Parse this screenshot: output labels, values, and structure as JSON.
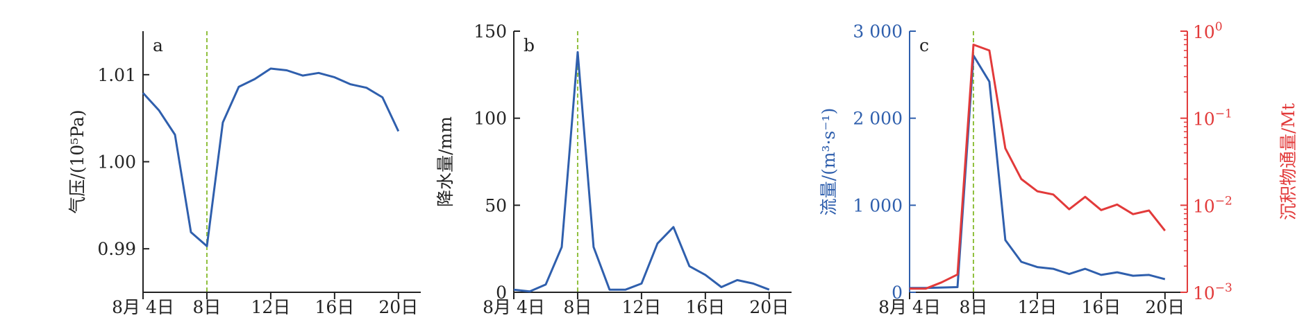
{
  "chart_data": [
    {
      "type": "line",
      "panel_label": "a",
      "ylabel": "气压/(10⁵Pa)",
      "ylim": [
        0.985,
        1.015
      ],
      "yticks": [
        0.99,
        1.0,
        1.01
      ],
      "ytick_labels": [
        "0.99",
        "1.00",
        "1.01"
      ],
      "xlim": [
        4,
        21.4
      ],
      "xticks": [
        4,
        8,
        12,
        16,
        20
      ],
      "xtick_labels": [
        "8月 4日",
        "8日",
        "12日",
        "16日",
        "20日"
      ],
      "marker_x": 8,
      "series": [
        {
          "color": "#2f5fad",
          "x": [
            4,
            5,
            6,
            7,
            8,
            9,
            10,
            11,
            12,
            13,
            14,
            15,
            16,
            17,
            18,
            19,
            20
          ],
          "y": [
            1.0079,
            1.0059,
            1.0031,
            0.9919,
            0.9903,
            1.0045,
            1.0086,
            1.0095,
            1.0107,
            1.0105,
            1.0099,
            1.0102,
            1.0097,
            1.0089,
            1.0085,
            1.0074,
            1.0035
          ]
        }
      ]
    },
    {
      "type": "line",
      "panel_label": "b",
      "ylabel": "降水量/mm",
      "ylim": [
        0,
        150
      ],
      "yticks": [
        0,
        50,
        100,
        150
      ],
      "ytick_labels": [
        "0",
        "50",
        "100",
        "150"
      ],
      "xlim": [
        4,
        21.4
      ],
      "xticks": [
        4,
        8,
        12,
        16,
        20
      ],
      "xtick_labels": [
        "8月 4日",
        "8日",
        "12日",
        "16日",
        "20日"
      ],
      "marker_x": 8,
      "series": [
        {
          "color": "#2f5fad",
          "x": [
            4,
            5,
            6,
            7,
            8,
            9,
            10,
            11,
            12,
            13,
            14,
            15,
            16,
            17,
            18,
            19,
            20
          ],
          "y": [
            1.5,
            0.5,
            4.5,
            26,
            138,
            26,
            1.5,
            1.5,
            5,
            28,
            37.5,
            15,
            10,
            3,
            7,
            5,
            1.5
          ]
        }
      ]
    },
    {
      "type": "line",
      "panel_label": "c",
      "ylabel": "流量/(m³·s⁻¹)",
      "ylabel_right": "沉积物通量/Mt",
      "ylim": [
        0,
        3000
      ],
      "yticks": [
        0,
        1000,
        2000,
        3000
      ],
      "ytick_labels": [
        "0",
        "1 000",
        "2 000",
        "3 000"
      ],
      "ylim_right": [
        0.001,
        1
      ],
      "yscale_right": "log",
      "yticks_right": [
        0.001,
        0.01,
        0.1,
        1
      ],
      "ytick_labels_right": [
        {
          "base": "10",
          "exp": "−3"
        },
        {
          "base": "10",
          "exp": "−2"
        },
        {
          "base": "10",
          "exp": "−1"
        },
        {
          "base": "10",
          "exp": "0"
        }
      ],
      "xlim": [
        4,
        21.4
      ],
      "xticks": [
        4,
        8,
        12,
        16,
        20
      ],
      "xtick_labels": [
        "8月 4日",
        "8日",
        "12日",
        "16日",
        "20日"
      ],
      "marker_x": 8,
      "left_color": "#2f5fad",
      "right_color": "#e23a3a",
      "series": [
        {
          "axis": "left",
          "color": "#2f5fad",
          "x": [
            4,
            5,
            6,
            7,
            8,
            9,
            10,
            11,
            12,
            13,
            14,
            15,
            16,
            17,
            18,
            19,
            20
          ],
          "y": [
            50,
            50,
            55,
            60,
            2720,
            2420,
            600,
            350,
            290,
            270,
            210,
            270,
            200,
            230,
            190,
            200,
            150
          ]
        },
        {
          "axis": "right",
          "color": "#e23a3a",
          "x": [
            4,
            5,
            6,
            7,
            8,
            9,
            10,
            11,
            12,
            13,
            14,
            15,
            16,
            17,
            18,
            19,
            20
          ],
          "y": [
            0.0011,
            0.0011,
            0.0013,
            0.0016,
            0.7,
            0.6,
            0.045,
            0.02,
            0.0145,
            0.0133,
            0.009,
            0.0125,
            0.0088,
            0.0102,
            0.0079,
            0.0087,
            0.0051
          ]
        }
      ]
    }
  ]
}
